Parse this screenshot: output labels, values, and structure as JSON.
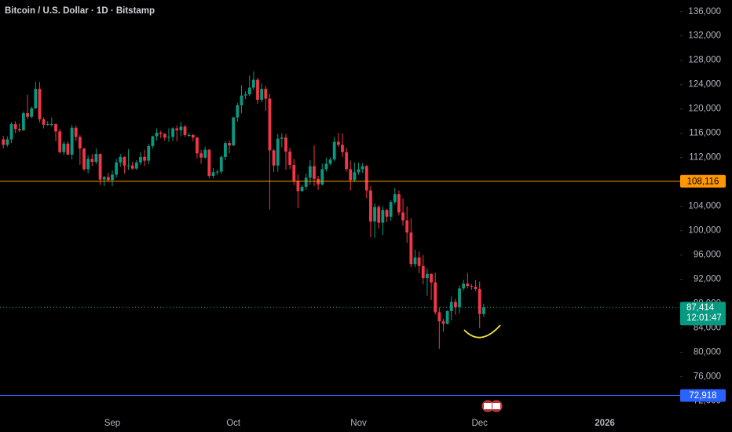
{
  "chart_data": {
    "type": "candlestick",
    "title": "Bitcoin / U.S. Dollar · 1D · Bitstamp",
    "up_color": "#089981",
    "down_color": "#f23645",
    "categories": [
      null,
      null,
      null,
      null,
      null,
      null,
      null,
      null,
      null,
      null,
      null,
      null,
      null,
      null,
      null,
      null,
      null,
      null,
      null,
      null,
      null,
      null,
      null,
      null,
      null,
      null,
      null,
      "Sep",
      null,
      null,
      null,
      null,
      null,
      null,
      null,
      null,
      null,
      null,
      null,
      null,
      null,
      null,
      null,
      null,
      null,
      null,
      null,
      null,
      null,
      null,
      null,
      null,
      null,
      null,
      null,
      null,
      null,
      "Oct",
      null,
      null,
      null,
      null,
      null,
      null,
      null,
      null,
      null,
      null,
      null,
      null,
      null,
      null,
      null,
      null,
      null,
      null,
      null,
      null,
      null,
      null,
      null,
      null,
      null,
      null,
      null,
      null,
      null,
      null,
      "Nov",
      null,
      null,
      null,
      null,
      null,
      null,
      null,
      null,
      null,
      null,
      null,
      null,
      null,
      null,
      null,
      null,
      null,
      null,
      null,
      null,
      null,
      null,
      null,
      null,
      null,
      null,
      null,
      null,
      null,
      "Dec",
      null,
      null,
      null,
      null,
      null,
      null,
      null,
      null,
      null,
      null,
      null,
      null,
      null,
      null,
      null,
      null,
      null,
      null,
      null,
      null,
      null,
      null,
      null,
      null,
      null,
      null,
      null,
      null,
      null,
      null,
      "2026"
    ],
    "open": [
      115000,
      114100,
      115000,
      117500,
      116700,
      116500,
      119300,
      118700,
      120100,
      123300,
      118300,
      117400,
      117500,
      117500,
      116300,
      112900,
      114300,
      112500,
      116900,
      115400,
      113500,
      110100,
      111800,
      111300,
      112600,
      108400,
      108800,
      108300,
      109200,
      111200,
      112100,
      110700,
      110700,
      110200,
      111200,
      112100,
      111500,
      113900,
      115500,
      116100,
      115900,
      115300,
      115400,
      116800,
      116500,
      117100,
      115700,
      115700,
      115300,
      112700,
      112000,
      113300,
      109000,
      109600,
      109700,
      112100,
      114400,
      114000,
      118600,
      120600,
      122200,
      122400,
      123500,
      124800,
      121500,
      123300,
      121700,
      113200,
      110700,
      115100,
      115300,
      113000,
      110800,
      108200,
      106500,
      107200,
      108700,
      110600,
      108500,
      107600,
      110100,
      111000,
      111700,
      114600,
      114100,
      112900,
      110100,
      108300,
      109600,
      110100,
      110600,
      106600,
      101500,
      103900,
      101300,
      103400,
      102300,
      104700,
      106000,
      103000,
      101700,
      99700,
      94500,
      95600,
      94200,
      92200,
      92900,
      91500,
      86600,
      85100,
      84700,
      86800,
      88300,
      87400,
      90500,
      91300,
      90900,
      90800,
      90400,
      86300,
      null,
      null,
      null,
      null,
      null,
      null,
      null,
      null,
      null,
      null,
      null,
      null,
      null,
      null,
      null,
      null,
      null,
      null,
      null,
      null,
      null,
      null,
      null,
      null,
      null,
      null,
      null,
      null,
      null,
      null
    ],
    "high": [
      115600,
      115500,
      117800,
      118000,
      117600,
      119600,
      122300,
      120400,
      124500,
      124400,
      118600,
      118000,
      118600,
      117600,
      116700,
      114700,
      114700,
      117400,
      117300,
      115700,
      113600,
      112400,
      112600,
      113500,
      112700,
      109000,
      109500,
      109900,
      111800,
      112600,
      112200,
      113400,
      111300,
      111600,
      112900,
      113300,
      114300,
      115600,
      116800,
      116400,
      116000,
      116800,
      117000,
      117300,
      117900,
      117400,
      116100,
      115900,
      115400,
      113300,
      113800,
      113400,
      110300,
      110000,
      112400,
      114700,
      114800,
      118700,
      121000,
      123900,
      122900,
      125500,
      126200,
      125100,
      124200,
      123800,
      122500,
      113400,
      115900,
      116000,
      115900,
      113600,
      111800,
      109200,
      107500,
      109400,
      111600,
      114000,
      109000,
      111000,
      112000,
      112000,
      115400,
      116100,
      116000,
      113600,
      111500,
      111200,
      111200,
      111100,
      110800,
      107300,
      104500,
      104200,
      104000,
      103600,
      105000,
      107000,
      106600,
      105300,
      104000,
      102000,
      96900,
      96600,
      96000,
      93800,
      93000,
      93100,
      87400,
      85500,
      86900,
      89200,
      88800,
      91000,
      91900,
      93100,
      91200,
      91900,
      91600,
      88000,
      null,
      null,
      null,
      null,
      null,
      null,
      null,
      null,
      null,
      null,
      null,
      null,
      null,
      null,
      null,
      null,
      null,
      null,
      null,
      null,
      null,
      null,
      null,
      null,
      null,
      null,
      null,
      null,
      null,
      null
    ],
    "low": [
      113500,
      113800,
      114400,
      116000,
      116200,
      116400,
      118300,
      118500,
      120000,
      117800,
      116800,
      117200,
      117100,
      114700,
      112700,
      112400,
      112400,
      111700,
      114700,
      110800,
      109800,
      109400,
      110600,
      110900,
      107500,
      107300,
      108100,
      107300,
      108700,
      110500,
      109400,
      110000,
      110000,
      110000,
      110800,
      110600,
      110900,
      113500,
      114800,
      115200,
      114800,
      114600,
      114700,
      114700,
      115500,
      115400,
      115400,
      114700,
      111900,
      111000,
      111800,
      108600,
      108600,
      109100,
      109300,
      111600,
      112700,
      113900,
      117900,
      119300,
      121600,
      122100,
      123100,
      120800,
      121100,
      119700,
      103500,
      109600,
      109700,
      113700,
      110000,
      110100,
      107500,
      103700,
      106400,
      106700,
      107500,
      107300,
      106700,
      107400,
      109700,
      110700,
      111400,
      113800,
      112100,
      109700,
      106600,
      108000,
      109200,
      109500,
      105300,
      98900,
      98800,
      100300,
      99300,
      101400,
      101600,
      104300,
      102500,
      100800,
      98000,
      94000,
      94000,
      93000,
      91200,
      89300,
      88600,
      86200,
      80600,
      83400,
      84600,
      85300,
      86200,
      86400,
      90100,
      90500,
      90300,
      90100,
      84000,
      85800,
      null,
      null,
      null,
      null,
      null,
      null,
      null,
      null,
      null,
      null,
      null,
      null,
      null,
      null,
      null,
      null,
      null,
      null,
      null,
      null,
      null,
      null,
      null,
      null,
      null,
      null,
      null,
      null,
      null,
      null
    ],
    "close": [
      114100,
      115000,
      117500,
      116700,
      116500,
      119300,
      118700,
      120100,
      123300,
      118300,
      117400,
      117500,
      117500,
      116300,
      112900,
      114300,
      112500,
      116900,
      115400,
      113500,
      110100,
      111800,
      111300,
      112600,
      108400,
      108800,
      108300,
      109200,
      111200,
      112100,
      110700,
      110700,
      110200,
      111200,
      112100,
      111500,
      113900,
      115500,
      116100,
      115900,
      115300,
      115400,
      116800,
      116500,
      117100,
      115700,
      115700,
      115300,
      112700,
      112000,
      113300,
      109000,
      109600,
      109700,
      112100,
      114400,
      114000,
      118600,
      120600,
      122200,
      122400,
      123500,
      124800,
      121500,
      123300,
      121700,
      113200,
      110700,
      115100,
      115300,
      113000,
      110800,
      108200,
      106500,
      107200,
      108700,
      110600,
      108500,
      107600,
      110100,
      111000,
      111700,
      114600,
      114100,
      112900,
      110100,
      108300,
      109600,
      110100,
      110600,
      106600,
      101500,
      103900,
      101300,
      103400,
      102300,
      104700,
      106000,
      103000,
      101700,
      99700,
      94500,
      95600,
      94200,
      92200,
      92900,
      91500,
      86600,
      85100,
      84700,
      86800,
      88300,
      87400,
      90500,
      91300,
      90900,
      90800,
      90400,
      86300,
      87414,
      null,
      null,
      null,
      null,
      null,
      null,
      null,
      null,
      null,
      null,
      null,
      null,
      null,
      null,
      null,
      null,
      null,
      null,
      null,
      null,
      null,
      null,
      null,
      null,
      null,
      null,
      null,
      null,
      null,
      null
    ],
    "ylim": [
      69500,
      137900
    ],
    "yticks": [
      {
        "value": 72000,
        "label": "72,000"
      },
      {
        "value": 76000,
        "label": "76,000"
      },
      {
        "value": 80000,
        "label": "80,000"
      },
      {
        "value": 84000,
        "label": "84,000"
      },
      {
        "value": 88000,
        "label": "88,000"
      },
      {
        "value": 92000,
        "label": "92,000"
      },
      {
        "value": 96000,
        "label": "96,000"
      },
      {
        "value": 100000,
        "label": "100,000"
      },
      {
        "value": 104000,
        "label": "104,000"
      },
      {
        "value": 108000,
        "label": "108,000"
      },
      {
        "value": 112000,
        "label": "112,000"
      },
      {
        "value": 116000,
        "label": "116,000"
      },
      {
        "value": 120000,
        "label": "120,000"
      },
      {
        "value": 124000,
        "label": "124,000"
      },
      {
        "value": 128000,
        "label": "128,000"
      },
      {
        "value": 132000,
        "label": "132,000"
      },
      {
        "value": 136000,
        "label": "136,000"
      }
    ],
    "lines": [
      {
        "value": 108116,
        "label": "108,116",
        "color": "#ff9800"
      },
      {
        "value": 72918,
        "label": "72,918",
        "color": "#2962ff"
      }
    ],
    "last_price": {
      "value": 87414,
      "label": "87,414",
      "countdown": "12:01:47",
      "color": "#089981"
    }
  }
}
